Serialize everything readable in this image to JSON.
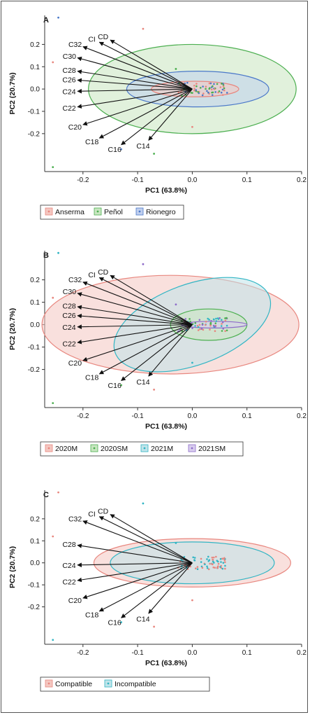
{
  "chart_data": [
    {
      "type": "scatter",
      "panel_label": "A",
      "xlabel": "PC1 (63.8%)",
      "ylabel": "PC2 (20.7%)",
      "xlim": [
        -0.27,
        0.2
      ],
      "ylim": [
        -0.37,
        0.33
      ],
      "xticks": [
        "-0.2",
        "-0.1",
        "0.0",
        "0.1",
        "0.2"
      ],
      "yticks": [
        "-0.2",
        "-0.1",
        "0.0",
        "0.1",
        "0.2"
      ],
      "legend_position": "bottom",
      "groups": [
        {
          "name": "Anserma",
          "color": "#e8877f",
          "fill": "#f4c7c1",
          "ellipse": {
            "cx": 0.005,
            "cy": 0.0,
            "rx": 0.08,
            "ry": 0.035
          }
        },
        {
          "name": "Peñol",
          "color": "#4caf50",
          "fill": "#c8e6c0",
          "ellipse": {
            "cx": 0.0,
            "cy": 0.0,
            "rx": 0.19,
            "ry": 0.2
          }
        },
        {
          "name": "Rionegro",
          "color": "#4a78c9",
          "fill": "#c0cfee",
          "ellipse": {
            "cx": 0.01,
            "cy": 0.0,
            "rx": 0.13,
            "ry": 0.08
          }
        }
      ],
      "loadings": [
        {
          "label": "CD",
          "x": -0.15,
          "y": 0.22
        },
        {
          "label": "CI",
          "x": -0.17,
          "y": 0.21
        },
        {
          "label": "C32",
          "x": -0.2,
          "y": 0.19
        },
        {
          "label": "C30",
          "x": -0.21,
          "y": 0.14
        },
        {
          "label": "C28",
          "x": -0.21,
          "y": 0.08
        },
        {
          "label": "C26",
          "x": -0.21,
          "y": 0.04
        },
        {
          "label": "C24",
          "x": -0.21,
          "y": -0.01
        },
        {
          "label": "C22",
          "x": -0.21,
          "y": -0.08
        },
        {
          "label": "C20",
          "x": -0.2,
          "y": -0.16
        },
        {
          "label": "C18",
          "x": -0.17,
          "y": -0.22
        },
        {
          "label": "C16",
          "x": -0.13,
          "y": -0.25
        },
        {
          "label": "C14",
          "x": -0.08,
          "y": -0.23
        }
      ]
    },
    {
      "type": "scatter",
      "panel_label": "B",
      "xlabel": "PC1 (63.8%)",
      "ylabel": "PC2 (20.7%)",
      "xlim": [
        -0.27,
        0.2
      ],
      "ylim": [
        -0.37,
        0.33
      ],
      "xticks": [
        "-0.2",
        "-0.1",
        "0.0",
        "0.1",
        "0.2"
      ],
      "yticks": [
        "-0.2",
        "-0.1",
        "0.0",
        "0.1",
        "0.2"
      ],
      "legend_position": "bottom",
      "groups": [
        {
          "name": "2020M",
          "color": "#e8877f",
          "fill": "#f4c7c1",
          "ellipse": {
            "cx": -0.04,
            "cy": 0.0,
            "rx": 0.235,
            "ry": 0.22
          }
        },
        {
          "name": "2020SM",
          "color": "#4caf50",
          "fill": "#c8e6c0",
          "ellipse": {
            "cx": 0.03,
            "cy": 0.0,
            "rx": 0.07,
            "ry": 0.07
          }
        },
        {
          "name": "2021M",
          "color": "#31b5c4",
          "fill": "#c0e4ea",
          "ellipse": {
            "cx": 0.0,
            "cy": 0.0,
            "rx": 0.15,
            "ry": 0.18,
            "angle": -20
          }
        },
        {
          "name": "2021SM",
          "color": "#8e6cc9",
          "fill": "#d8cdee",
          "ellipse": {
            "cx": 0.04,
            "cy": 0.0,
            "rx": 0.06,
            "ry": 0.015
          }
        }
      ],
      "loadings": [
        {
          "label": "CD",
          "x": -0.15,
          "y": 0.22
        },
        {
          "label": "CI",
          "x": -0.17,
          "y": 0.21
        },
        {
          "label": "C32",
          "x": -0.2,
          "y": 0.19
        },
        {
          "label": "C30",
          "x": -0.21,
          "y": 0.14
        },
        {
          "label": "C28",
          "x": -0.21,
          "y": 0.08
        },
        {
          "label": "C26",
          "x": -0.21,
          "y": 0.04
        },
        {
          "label": "C24",
          "x": -0.21,
          "y": -0.01
        },
        {
          "label": "C22",
          "x": -0.21,
          "y": -0.08
        },
        {
          "label": "C20",
          "x": -0.2,
          "y": -0.16
        },
        {
          "label": "C18",
          "x": -0.17,
          "y": -0.22
        },
        {
          "label": "C16",
          "x": -0.13,
          "y": -0.25
        },
        {
          "label": "C14",
          "x": -0.08,
          "y": -0.23
        }
      ]
    },
    {
      "type": "scatter",
      "panel_label": "C",
      "xlabel": "PC1 (63.8%)",
      "ylabel": "PC2 (20.7%)",
      "xlim": [
        -0.27,
        0.2
      ],
      "ylim": [
        -0.37,
        0.33
      ],
      "xticks": [
        "-0.2",
        "-0.1",
        "0.0",
        "0.1",
        "0.2"
      ],
      "yticks": [
        "-0.2",
        "-0.1",
        "0.0",
        "0.1",
        "0.2"
      ],
      "legend_position": "bottom",
      "groups": [
        {
          "name": "Compatible",
          "color": "#e8877f",
          "fill": "#f4c7c1",
          "ellipse": {
            "cx": 0.0,
            "cy": 0.0,
            "rx": 0.18,
            "ry": 0.11
          }
        },
        {
          "name": "Incompatible",
          "color": "#31b5c4",
          "fill": "#c0e4ea",
          "ellipse": {
            "cx": 0.0,
            "cy": 0.0,
            "rx": 0.15,
            "ry": 0.095
          }
        }
      ],
      "loadings": [
        {
          "label": "CD",
          "x": -0.15,
          "y": 0.22
        },
        {
          "label": "CI",
          "x": -0.17,
          "y": 0.21
        },
        {
          "label": "C32",
          "x": -0.2,
          "y": 0.19
        },
        {
          "label": "C28",
          "x": -0.21,
          "y": 0.08
        },
        {
          "label": "C24",
          "x": -0.21,
          "y": -0.01
        },
        {
          "label": "C22",
          "x": -0.21,
          "y": -0.08
        },
        {
          "label": "C20",
          "x": -0.2,
          "y": -0.16
        },
        {
          "label": "C18",
          "x": -0.17,
          "y": -0.22
        },
        {
          "label": "C16",
          "x": -0.13,
          "y": -0.25
        },
        {
          "label": "C14",
          "x": -0.08,
          "y": -0.23
        }
      ]
    }
  ]
}
